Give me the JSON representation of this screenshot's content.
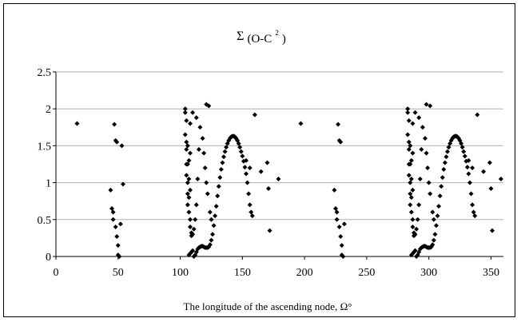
{
  "chart_data": {
    "type": "scatter",
    "title_main": "Σ",
    "title_paren": "(O-C",
    "title_sup": "2",
    "title_close": ")",
    "xlabel": "The longitude of the ascending node, Ω°",
    "ylabel": "",
    "xlim": [
      0,
      360
    ],
    "ylim": [
      0,
      2.5
    ],
    "x_ticks": [
      "0",
      "50",
      "100",
      "150",
      "200",
      "250",
      "300",
      "350"
    ],
    "x_tick_values": [
      0,
      50,
      100,
      150,
      200,
      250,
      300,
      350
    ],
    "y_ticks": [
      "0",
      "0.5",
      "1",
      "1.5",
      "2",
      "2.5"
    ],
    "y_tick_values": [
      0,
      0.5,
      1,
      1.5,
      2,
      2.5
    ],
    "grid": "horizontal",
    "legend": "none",
    "marker_color": "#000000",
    "series": [
      {
        "points": [
          [
            17,
            1.8
          ],
          [
            44,
            0.9
          ],
          [
            45,
            0.65
          ],
          [
            46,
            0.6
          ],
          [
            46,
            0.5
          ],
          [
            47,
            1.79
          ],
          [
            48,
            1.57
          ],
          [
            49,
            1.55
          ],
          [
            48,
            0.4
          ],
          [
            49,
            0.27
          ],
          [
            50,
            0.15
          ],
          [
            50,
            0.02
          ],
          [
            51,
            0
          ],
          [
            52,
            0.44
          ],
          [
            53,
            1.5
          ],
          [
            54,
            0.98
          ],
          [
            104,
            2.0
          ],
          [
            104,
            1.95
          ],
          [
            104,
            1.65
          ],
          [
            105,
            1.84
          ],
          [
            105,
            1.55
          ],
          [
            105,
            1.45
          ],
          [
            105,
            1.25
          ],
          [
            105,
            1.1
          ],
          [
            106,
            1.5
          ],
          [
            106,
            1.25
          ],
          [
            106,
            1.0
          ],
          [
            106,
            0.85
          ],
          [
            106,
            0.7
          ],
          [
            107,
            1.3
          ],
          [
            107,
            1.05
          ],
          [
            107,
            0.8
          ],
          [
            107,
            0.6
          ],
          [
            108,
            1.8
          ],
          [
            108,
            1.4
          ],
          [
            108,
            0.9
          ],
          [
            108,
            0.5
          ],
          [
            108,
            0.4
          ],
          [
            109,
            0.32
          ],
          [
            109,
            0.28
          ],
          [
            110,
            1.95
          ],
          [
            110,
            0.3
          ],
          [
            111,
            0.37
          ],
          [
            112,
            0.5
          ],
          [
            113,
            0.7
          ],
          [
            113,
            1.88
          ],
          [
            114,
            1.05
          ],
          [
            115,
            1.45
          ],
          [
            116,
            1.75
          ],
          [
            118,
            1.6
          ],
          [
            119,
            1.4
          ],
          [
            120,
            1.2
          ],
          [
            121,
            1.0
          ],
          [
            121,
            2.06
          ],
          [
            122,
            0.85
          ],
          [
            123,
            2.04
          ],
          [
            124,
            0.6
          ],
          [
            125,
            0.5
          ],
          [
            107,
            0.02
          ],
          [
            108,
            0.04
          ],
          [
            109,
            0.06
          ],
          [
            110,
            0.08
          ],
          [
            111,
            0.0
          ],
          [
            112,
            0.02
          ],
          [
            113,
            0.06
          ],
          [
            114,
            0.1
          ],
          [
            115,
            0.12
          ],
          [
            116,
            0.13
          ],
          [
            117,
            0.14
          ],
          [
            118,
            0.14
          ],
          [
            119,
            0.13
          ],
          [
            120,
            0.12
          ],
          [
            121,
            0.12
          ],
          [
            122,
            0.12
          ],
          [
            123,
            0.13
          ],
          [
            124,
            0.16
          ],
          [
            125,
            0.22
          ],
          [
            126,
            0.3
          ],
          [
            127,
            0.42
          ],
          [
            128,
            0.55
          ],
          [
            129,
            0.68
          ],
          [
            130,
            0.82
          ],
          [
            131,
            0.95
          ],
          [
            132,
            1.07
          ],
          [
            133,
            1.18
          ],
          [
            134,
            1.27
          ],
          [
            135,
            1.35
          ],
          [
            136,
            1.42
          ],
          [
            137,
            1.48
          ],
          [
            138,
            1.53
          ],
          [
            139,
            1.57
          ],
          [
            140,
            1.6
          ],
          [
            141,
            1.62
          ],
          [
            142,
            1.63
          ],
          [
            143,
            1.63
          ],
          [
            144,
            1.62
          ],
          [
            145,
            1.6
          ],
          [
            146,
            1.57
          ],
          [
            147,
            1.53
          ],
          [
            148,
            1.48
          ],
          [
            149,
            1.42
          ],
          [
            150,
            1.36
          ],
          [
            151,
            1.29
          ],
          [
            152,
            1.21
          ],
          [
            153,
            1.12
          ],
          [
            154,
            1.0
          ],
          [
            155,
            0.85
          ],
          [
            156,
            0.7
          ],
          [
            157,
            0.6
          ],
          [
            158,
            0.55
          ],
          [
            153,
            1.3
          ],
          [
            156,
            1.2
          ],
          [
            160,
            1.92
          ],
          [
            165,
            1.15
          ],
          [
            170,
            1.27
          ],
          [
            171,
            0.92
          ],
          [
            172,
            0.35
          ],
          [
            179,
            1.05
          ],
          [
            197,
            1.8
          ],
          [
            224,
            0.9
          ],
          [
            225,
            0.65
          ],
          [
            226,
            0.6
          ],
          [
            226,
            0.5
          ],
          [
            227,
            1.79
          ],
          [
            228,
            1.57
          ],
          [
            229,
            1.55
          ],
          [
            228,
            0.4
          ],
          [
            229,
            0.27
          ],
          [
            230,
            0.15
          ],
          [
            230,
            0.02
          ],
          [
            231,
            0
          ],
          [
            232,
            0.44
          ],
          [
            283,
            2.0
          ],
          [
            283,
            1.95
          ],
          [
            283,
            1.65
          ],
          [
            284,
            1.84
          ],
          [
            284,
            1.55
          ],
          [
            284,
            1.45
          ],
          [
            284,
            1.25
          ],
          [
            284,
            1.1
          ],
          [
            285,
            1.5
          ],
          [
            285,
            1.25
          ],
          [
            285,
            1.0
          ],
          [
            285,
            0.85
          ],
          [
            285,
            0.7
          ],
          [
            286,
            1.3
          ],
          [
            286,
            1.05
          ],
          [
            286,
            0.8
          ],
          [
            286,
            0.6
          ],
          [
            287,
            1.8
          ],
          [
            287,
            1.4
          ],
          [
            287,
            0.9
          ],
          [
            287,
            0.5
          ],
          [
            287,
            0.4
          ],
          [
            288,
            0.32
          ],
          [
            288,
            0.28
          ],
          [
            289,
            1.95
          ],
          [
            289,
            0.3
          ],
          [
            290,
            0.37
          ],
          [
            291,
            0.5
          ],
          [
            292,
            0.7
          ],
          [
            292,
            1.88
          ],
          [
            293,
            1.05
          ],
          [
            294,
            1.45
          ],
          [
            295,
            1.75
          ],
          [
            297,
            1.6
          ],
          [
            298,
            1.4
          ],
          [
            298,
            2.06
          ],
          [
            299,
            1.2
          ],
          [
            300,
            1.0
          ],
          [
            301,
            2.04
          ],
          [
            301,
            0.85
          ],
          [
            303,
            0.6
          ],
          [
            304,
            0.5
          ],
          [
            286,
            0.02
          ],
          [
            287,
            0.04
          ],
          [
            288,
            0.06
          ],
          [
            289,
            0.08
          ],
          [
            290,
            0.0
          ],
          [
            291,
            0.02
          ],
          [
            292,
            0.06
          ],
          [
            293,
            0.1
          ],
          [
            294,
            0.12
          ],
          [
            295,
            0.13
          ],
          [
            296,
            0.14
          ],
          [
            297,
            0.14
          ],
          [
            298,
            0.13
          ],
          [
            299,
            0.12
          ],
          [
            300,
            0.12
          ],
          [
            301,
            0.12
          ],
          [
            302,
            0.13
          ],
          [
            303,
            0.16
          ],
          [
            304,
            0.22
          ],
          [
            305,
            0.3
          ],
          [
            306,
            0.42
          ],
          [
            307,
            0.55
          ],
          [
            308,
            0.68
          ],
          [
            309,
            0.82
          ],
          [
            310,
            0.95
          ],
          [
            311,
            1.07
          ],
          [
            312,
            1.18
          ],
          [
            313,
            1.27
          ],
          [
            314,
            1.35
          ],
          [
            315,
            1.42
          ],
          [
            316,
            1.48
          ],
          [
            317,
            1.53
          ],
          [
            318,
            1.57
          ],
          [
            319,
            1.6
          ],
          [
            320,
            1.62
          ],
          [
            321,
            1.63
          ],
          [
            322,
            1.63
          ],
          [
            323,
            1.62
          ],
          [
            324,
            1.6
          ],
          [
            325,
            1.57
          ],
          [
            326,
            1.53
          ],
          [
            327,
            1.48
          ],
          [
            328,
            1.42
          ],
          [
            329,
            1.36
          ],
          [
            330,
            1.29
          ],
          [
            331,
            1.21
          ],
          [
            332,
            1.12
          ],
          [
            333,
            1.0
          ],
          [
            334,
            0.85
          ],
          [
            335,
            0.7
          ],
          [
            336,
            0.6
          ],
          [
            337,
            0.55
          ],
          [
            332,
            1.3
          ],
          [
            335,
            1.2
          ],
          [
            339,
            1.92
          ],
          [
            344,
            1.15
          ],
          [
            349,
            1.27
          ],
          [
            350,
            0.92
          ],
          [
            351,
            0.35
          ],
          [
            358,
            1.05
          ]
        ]
      }
    ]
  }
}
